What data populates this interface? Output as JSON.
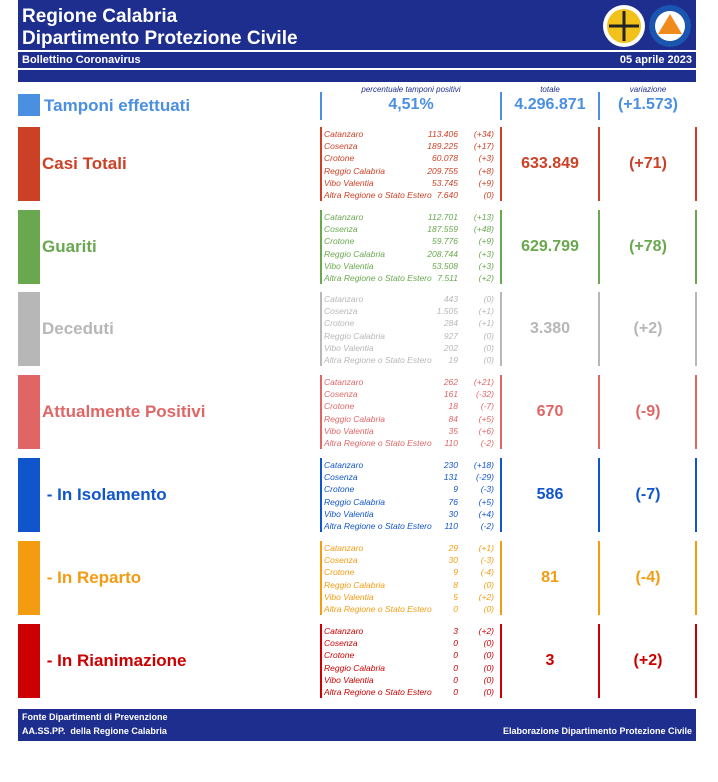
{
  "header": {
    "title": "Regione Calabria",
    "subtitle": "Dipartimento Protezione Civile",
    "bulletin": "Bollettino Coronavirus",
    "date": "05 aprile 2023"
  },
  "tamponi": {
    "label": "Tamponi effettuati",
    "color": "#4a8fe0",
    "percent_label": "percentuale tamponi positivi",
    "percent": "4,51%",
    "total_label": "totale",
    "total": "4.296.871",
    "variation_label": "variazione",
    "variation": "(+1.573)"
  },
  "sections": [
    {
      "label": "Casi Totali",
      "color": "#cc4125",
      "total": "633.849",
      "variation": "(+71)",
      "rows": [
        [
          "Catanzaro",
          "113.406",
          "(+34)"
        ],
        [
          "Cosenza",
          "189.225",
          "(+17)"
        ],
        [
          "Crotone",
          "60.078",
          "(+3)"
        ],
        [
          "Reggio Calabria",
          "209.755",
          "(+8)"
        ],
        [
          "Vibo Valentia",
          "53.745",
          "(+9)"
        ],
        [
          "Altra Regione o Stato Estero",
          "7.640",
          "(0)"
        ]
      ]
    },
    {
      "label": "Guariti",
      "color": "#6aa84f",
      "total": "629.799",
      "variation": "(+78)",
      "rows": [
        [
          "Catanzaro",
          "112.701",
          "(+13)"
        ],
        [
          "Cosenza",
          "187.559",
          "(+48)"
        ],
        [
          "Crotone",
          "59.776",
          "(+9)"
        ],
        [
          "Reggio Calabria",
          "208.744",
          "(+3)"
        ],
        [
          "Vibo Valentia",
          "53.508",
          "(+3)"
        ],
        [
          "Altra Regione o Stato Estero",
          "7.511",
          "(+2)"
        ]
      ]
    },
    {
      "label": "Deceduti",
      "color": "#b7b7b7",
      "total": "3.380",
      "variation": "(+2)",
      "rows": [
        [
          "Catanzaro",
          "443",
          "(0)"
        ],
        [
          "Cosenza",
          "1.505",
          "(+1)"
        ],
        [
          "Crotone",
          "284",
          "(+1)"
        ],
        [
          "Reggio Calabria",
          "927",
          "(0)"
        ],
        [
          "Vibo Valentia",
          "202",
          "(0)"
        ],
        [
          "Altra Regione o Stato Estero",
          "19",
          "(0)"
        ]
      ]
    },
    {
      "label": "Attualmente Positivi",
      "color": "#e06666",
      "total": "670",
      "variation": "(-9)",
      "rows": [
        [
          "Catanzaro",
          "262",
          "(+21)"
        ],
        [
          "Cosenza",
          "161",
          "(-32)"
        ],
        [
          "Crotone",
          "18",
          "(-7)"
        ],
        [
          "Reggio Calabria",
          "84",
          "(+5)"
        ],
        [
          "Vibo Valentia",
          "35",
          "(+6)"
        ],
        [
          "Altra Regione o Stato Estero",
          "110",
          "(-2)"
        ]
      ]
    },
    {
      "label": " - In Isolamento",
      "color": "#1155cc",
      "total": "586",
      "variation": "(-7)",
      "rows": [
        [
          "Catanzaro",
          "230",
          "(+18)"
        ],
        [
          "Cosenza",
          "131",
          "(-29)"
        ],
        [
          "Crotone",
          "9",
          "(-3)"
        ],
        [
          "Reggio Calabria",
          "76",
          "(+5)"
        ],
        [
          "Vibo Valentia",
          "30",
          "(+4)"
        ],
        [
          "Altra Regione o Stato Estero",
          "110",
          "(-2)"
        ]
      ]
    },
    {
      "label": " - In Reparto",
      "color": "#f39c12",
      "total": "81",
      "variation": "(-4)",
      "rows": [
        [
          "Catanzaro",
          "29",
          "(+1)"
        ],
        [
          "Cosenza",
          "30",
          "(-3)"
        ],
        [
          "Crotone",
          "9",
          "(-4)"
        ],
        [
          "Reggio Calabria",
          "8",
          "(0)"
        ],
        [
          "Vibo Valentia",
          "5",
          "(+2)"
        ],
        [
          "Altra Regione o Stato Estero",
          "0",
          "(0)"
        ]
      ]
    },
    {
      "label": " - In Rianimazione",
      "color": "#cc0000",
      "total": "3",
      "variation": "(+2)",
      "rows": [
        [
          "Catanzaro",
          "3",
          "(+2)"
        ],
        [
          "Cosenza",
          "0",
          "(0)"
        ],
        [
          "Crotone",
          "0",
          "(0)"
        ],
        [
          "Reggio Calabria",
          "0",
          "(0)"
        ],
        [
          "Vibo Valentia",
          "0",
          "(0)"
        ],
        [
          "Altra Regione o Stato Estero",
          "0",
          "(0)"
        ]
      ]
    }
  ],
  "footer": {
    "source_1": "Fonte Dipartimenti di Prevenzione",
    "source_2": "AA.SS.PP.  della Regione Calabria",
    "credit": "Elaborazione Dipartimento Protezione Civile"
  }
}
